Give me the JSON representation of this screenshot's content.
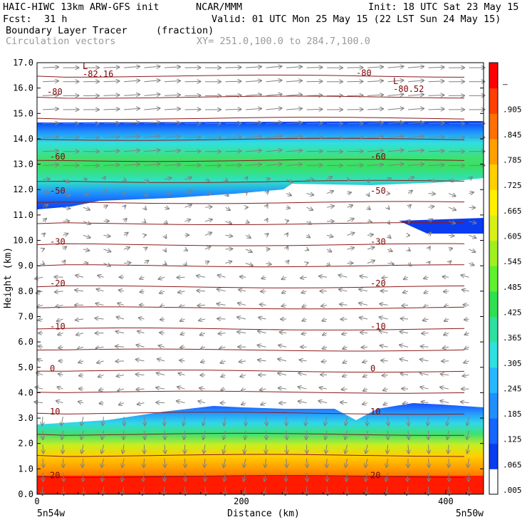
{
  "header": {
    "model": "HAIC-HIWC 13km ARW-GFS init",
    "institution": "NCAR/MMM",
    "init": "Init: 18 UTC Sat 23 May 15",
    "fcst_label": "Fcst:",
    "fcst_value": "31 h",
    "valid": "Valid: 01 UTC Mon 25 May 15 (22 LST Sun 24 May 15)",
    "field": "Boundary Layer Tracer",
    "units": "(fraction)",
    "vectors": "Circulation vectors",
    "xy": "XY= 251.0,100.0 to 284.7,100.0"
  },
  "chart_data": {
    "type": "heatmap",
    "title": "Boundary Layer Tracer",
    "units": "(fraction)",
    "xlabel": "Distance (km)",
    "ylabel": "Height (km)",
    "xlim": [
      0,
      437
    ],
    "ylim": [
      0,
      17
    ],
    "x_ticks": [
      0,
      200,
      400
    ],
    "y_ticks": [
      "0.0",
      "1.0",
      "2.0",
      "3.0",
      "4.0",
      "5.0",
      "6.0",
      "7.0",
      "8.0",
      "9.0",
      "10.0",
      "11.0",
      "12.0",
      "13.0",
      "14.0",
      "15.0",
      "16.0",
      "17.0"
    ],
    "x_end_labels": [
      "5n54w",
      "5n50w"
    ],
    "colorbar": {
      "labels": [
        ".005",
        ".065",
        ".125",
        ".185",
        ".245",
        ".305",
        ".365",
        ".425",
        ".485",
        ".545",
        ".605",
        ".665",
        ".725",
        ".785",
        ".845",
        ".905",
        "–"
      ],
      "colors": [
        "#ffffff",
        "#0a3cf0",
        "#1566ff",
        "#2090ff",
        "#28b8ff",
        "#30e0e0",
        "#30e0a0",
        "#30e050",
        "#60f030",
        "#a0f020",
        "#d8f018",
        "#fff000",
        "#ffd000",
        "#ffa000",
        "#ff7000",
        "#ff4000",
        "#ff0000"
      ]
    },
    "temperature_contours": [
      {
        "label": "20",
        "height_km": 0.75
      },
      {
        "label": "10",
        "height_km": 3.25
      },
      {
        "label": "0",
        "height_km": 4.95
      },
      {
        "label": "-10",
        "height_km": 6.6
      },
      {
        "label": "-20",
        "height_km": 8.3
      },
      {
        "label": "-30",
        "height_km": 9.95
      },
      {
        "label": "-50",
        "height_km": 11.95
      },
      {
        "label": "-60",
        "height_km": 13.3
      },
      {
        "label": "-80",
        "height_km": 15.85
      },
      {
        "label": "-80",
        "height_km": 16.6
      }
    ],
    "extrema": [
      {
        "mark": "L",
        "value": "-82.16"
      },
      {
        "mark": "L",
        "value": "-80.52"
      }
    ]
  }
}
